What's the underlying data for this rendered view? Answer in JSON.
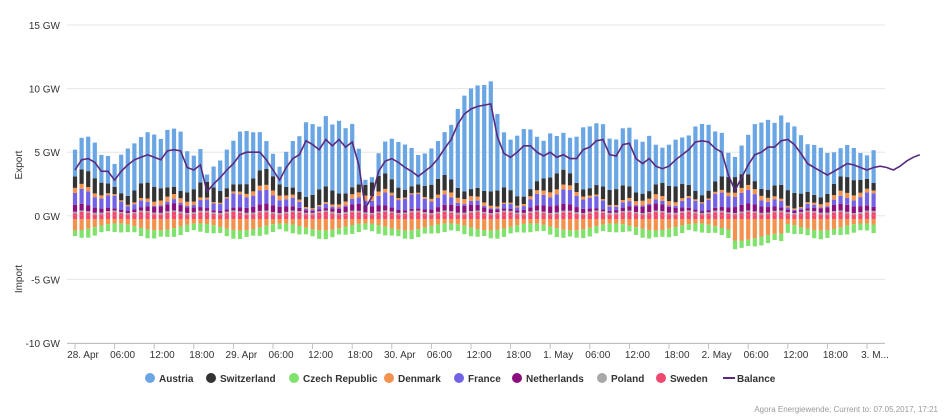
{
  "chart_data": {
    "type": "bar",
    "stacked": true,
    "ylabel_top": "Export",
    "ylabel_bottom": "Import",
    "ylim": [
      -10,
      15
    ],
    "y_ticks": [
      -10,
      -5,
      0,
      5,
      10,
      15
    ],
    "y_tick_labels": [
      "-10 GW",
      "-5 GW",
      "0 GW",
      "5 GW",
      "10 GW",
      "15 GW"
    ],
    "x_hours_start": 0,
    "x_hours_end": 149,
    "x_ticks": [
      {
        "h": 0,
        "label": "28. Apr"
      },
      {
        "h": 6,
        "label": "06:00"
      },
      {
        "h": 12,
        "label": "12:00"
      },
      {
        "h": 18,
        "label": "18:00"
      },
      {
        "h": 24,
        "label": "29. Apr"
      },
      {
        "h": 30,
        "label": "06:00"
      },
      {
        "h": 36,
        "label": "12:00"
      },
      {
        "h": 42,
        "label": "18:00"
      },
      {
        "h": 48,
        "label": "30. Apr"
      },
      {
        "h": 54,
        "label": "06:00"
      },
      {
        "h": 60,
        "label": "12:00"
      },
      {
        "h": 66,
        "label": "18:00"
      },
      {
        "h": 72,
        "label": "1. May"
      },
      {
        "h": 78,
        "label": "06:00"
      },
      {
        "h": 84,
        "label": "12:00"
      },
      {
        "h": 90,
        "label": "18:00"
      },
      {
        "h": 96,
        "label": "2. May"
      },
      {
        "h": 102,
        "label": "06:00"
      },
      {
        "h": 108,
        "label": "12:00"
      },
      {
        "h": 114,
        "label": "18:00"
      },
      {
        "h": 120,
        "label": "3. M..."
      }
    ],
    "grid": true,
    "legend_position": "bottom",
    "series": [
      {
        "name": "Austria",
        "color": "#6aa6e4"
      },
      {
        "name": "Switzerland",
        "color": "#333333"
      },
      {
        "name": "Czech Republic",
        "color": "#7fe26b"
      },
      {
        "name": "Denmark",
        "color": "#f4914d"
      },
      {
        "name": "France",
        "color": "#7262e6"
      },
      {
        "name": "Netherlands",
        "color": "#8c0f7e"
      },
      {
        "name": "Poland",
        "color": "#a8a8a8"
      },
      {
        "name": "Sweden",
        "color": "#f0486e"
      },
      {
        "name": "Balance",
        "color": "#5a2a7e",
        "type": "line"
      }
    ],
    "balance_profile": [
      [
        0,
        3.6
      ],
      [
        1,
        4.4
      ],
      [
        2,
        4.5
      ],
      [
        3,
        4.2
      ],
      [
        4,
        3.5
      ],
      [
        5,
        3.5
      ],
      [
        6,
        2.8
      ],
      [
        7,
        3.5
      ],
      [
        8,
        4.0
      ],
      [
        9,
        4.4
      ],
      [
        10,
        4.6
      ],
      [
        11,
        4.8
      ],
      [
        12,
        4.6
      ],
      [
        13,
        4.4
      ],
      [
        14,
        5.1
      ],
      [
        15,
        5.2
      ],
      [
        16,
        5.1
      ],
      [
        17,
        3.8
      ],
      [
        18,
        3.6
      ],
      [
        19,
        4.0
      ],
      [
        20,
        1.9
      ],
      [
        21,
        2.5
      ],
      [
        22,
        3.0
      ],
      [
        23,
        3.6
      ],
      [
        24,
        4.1
      ],
      [
        25,
        4.8
      ],
      [
        26,
        5.0
      ],
      [
        27,
        5.0
      ],
      [
        28,
        5.0
      ],
      [
        29,
        4.4
      ],
      [
        30,
        3.6
      ],
      [
        31,
        2.8
      ],
      [
        32,
        3.8
      ],
      [
        33,
        4.5
      ],
      [
        34,
        4.8
      ],
      [
        35,
        5.9
      ],
      [
        36,
        5.6
      ],
      [
        37,
        5.2
      ],
      [
        38,
        6.0
      ],
      [
        39,
        5.5
      ],
      [
        40,
        6.0
      ],
      [
        41,
        5.4
      ],
      [
        42,
        5.8
      ],
      [
        43,
        4.0
      ],
      [
        44,
        0.6
      ],
      [
        45,
        1.5
      ],
      [
        46,
        3.5
      ],
      [
        47,
        4.3
      ],
      [
        48,
        4.5
      ],
      [
        49,
        4.2
      ],
      [
        50,
        3.8
      ],
      [
        51,
        3.5
      ],
      [
        52,
        3.1
      ],
      [
        53,
        3.5
      ],
      [
        54,
        3.9
      ],
      [
        55,
        4.5
      ],
      [
        56,
        5.3
      ],
      [
        57,
        6.0
      ],
      [
        58,
        7.2
      ],
      [
        59,
        8.0
      ],
      [
        60,
        8.4
      ],
      [
        61,
        8.6
      ],
      [
        62,
        8.7
      ],
      [
        63,
        8.8
      ],
      [
        64,
        6.2
      ],
      [
        65,
        4.9
      ],
      [
        66,
        4.6
      ],
      [
        67,
        5.0
      ],
      [
        68,
        5.5
      ],
      [
        69,
        5.5
      ],
      [
        70,
        5.0
      ],
      [
        71,
        4.7
      ],
      [
        72,
        5.0
      ],
      [
        73,
        4.6
      ],
      [
        74,
        4.8
      ],
      [
        75,
        4.5
      ],
      [
        76,
        4.5
      ],
      [
        77,
        5.2
      ],
      [
        78,
        5.4
      ],
      [
        79,
        5.9
      ],
      [
        80,
        6.0
      ],
      [
        81,
        4.8
      ],
      [
        82,
        4.7
      ],
      [
        83,
        5.6
      ],
      [
        84,
        5.7
      ],
      [
        85,
        4.5
      ],
      [
        86,
        4.1
      ],
      [
        87,
        4.5
      ],
      [
        88,
        3.9
      ],
      [
        89,
        3.7
      ],
      [
        90,
        3.9
      ],
      [
        91,
        4.4
      ],
      [
        92,
        4.8
      ],
      [
        93,
        5.2
      ],
      [
        94,
        5.8
      ],
      [
        95,
        5.9
      ],
      [
        96,
        5.8
      ],
      [
        97,
        5.3
      ],
      [
        98,
        5.0
      ],
      [
        99,
        3.2
      ],
      [
        100,
        2.0
      ],
      [
        101,
        3.0
      ],
      [
        102,
        4.0
      ],
      [
        103,
        4.8
      ],
      [
        104,
        5.0
      ],
      [
        105,
        5.4
      ],
      [
        106,
        5.4
      ],
      [
        107,
        5.9
      ],
      [
        108,
        6.0
      ],
      [
        109,
        5.6
      ],
      [
        110,
        4.9
      ],
      [
        111,
        4.1
      ],
      [
        112,
        3.8
      ],
      [
        113,
        3.5
      ],
      [
        114,
        3.2
      ],
      [
        115,
        3.5
      ],
      [
        116,
        3.8
      ],
      [
        117,
        4.1
      ],
      [
        118,
        4.0
      ],
      [
        119,
        3.8
      ],
      [
        120,
        3.6
      ],
      [
        121,
        3.8
      ],
      [
        122,
        3.9
      ],
      [
        123,
        3.8
      ],
      [
        124,
        3.6
      ],
      [
        125,
        3.9
      ],
      [
        126,
        4.3
      ],
      [
        127,
        4.6
      ],
      [
        128,
        4.8
      ]
    ]
  },
  "legend": {
    "items": [
      "Austria",
      "Switzerland",
      "Czech Republic",
      "Denmark",
      "France",
      "Netherlands",
      "Poland",
      "Sweden",
      "Balance"
    ]
  },
  "credit": "Agora Energiewende; Current to: 07.05.2017, 17:21"
}
